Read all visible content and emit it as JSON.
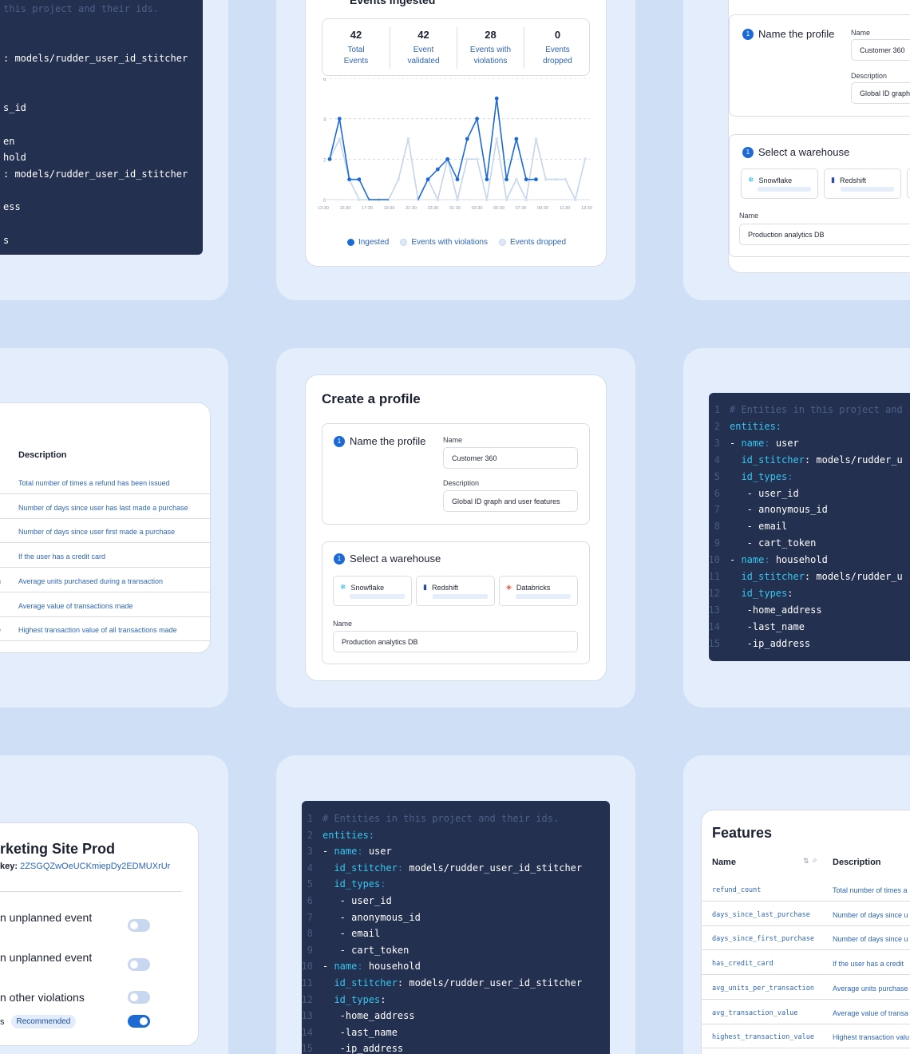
{
  "code_tile_top": {
    "lines": [
      {
        "parts": [
          {
            "t": "this project and their ids.",
            "c": "cm"
          }
        ]
      },
      {
        "parts": []
      },
      {
        "parts": []
      },
      {
        "parts": [
          {
            "t": ": models/rudder_user_id_stitcher",
            "c": "pl"
          }
        ]
      },
      {
        "parts": []
      },
      {
        "parts": []
      },
      {
        "parts": [
          {
            "t": "s_id",
            "c": "pl"
          }
        ]
      },
      {
        "parts": []
      },
      {
        "parts": [
          {
            "t": "en",
            "c": "pl"
          }
        ]
      },
      {
        "parts": [
          {
            "t": "hold",
            "c": "pl"
          }
        ]
      },
      {
        "parts": [
          {
            "t": ": models/rudder_user_id_stitcher",
            "c": "pl"
          }
        ]
      },
      {
        "parts": []
      },
      {
        "parts": [
          {
            "t": "ess",
            "c": "pl"
          }
        ]
      },
      {
        "parts": []
      },
      {
        "parts": [
          {
            "t": "s",
            "c": "pl"
          }
        ]
      }
    ]
  },
  "events_card": {
    "title": "Events ingested",
    "stats": [
      {
        "value": "42",
        "label": "Total\nEvents"
      },
      {
        "value": "42",
        "label": "Event\nvalidated"
      },
      {
        "value": "28",
        "label": "Events with\nviolations"
      },
      {
        "value": "0",
        "label": "Events\ndropped"
      }
    ],
    "legend": [
      "Ingested",
      "Events with violations",
      "Events dropped"
    ]
  },
  "chart_data": {
    "type": "line",
    "ylim": [
      0,
      6
    ],
    "y_ticks": [
      "0",
      "2",
      "4",
      "6"
    ],
    "x_ticks": [
      "13:30",
      "15:30",
      "17:30",
      "19:30",
      "21:30",
      "23:30",
      "01:30",
      "03:30",
      "05:30",
      "07:30",
      "09:30",
      "11:30",
      "13:30"
    ],
    "colors": {
      "Ingested": "#1c6ad4",
      "Events with violations": "#c4d5ec",
      "Events dropped": "#c4d5ec"
    },
    "series": [
      {
        "name": "Ingested",
        "segments": [
          [
            [
              1,
              2
            ],
            [
              2,
              4
            ],
            [
              3,
              1
            ],
            [
              4,
              1
            ],
            [
              5,
              0
            ],
            [
              6,
              0
            ],
            [
              7,
              0
            ]
          ],
          [
            [
              10,
              0
            ],
            [
              11,
              1
            ],
            [
              12,
              1.5
            ],
            [
              13,
              2
            ],
            [
              14,
              1
            ],
            [
              15,
              3
            ],
            [
              16,
              4
            ],
            [
              17,
              1
            ],
            [
              18,
              5
            ],
            [
              19,
              1
            ],
            [
              20,
              3
            ],
            [
              21,
              1
            ],
            [
              22,
              1
            ]
          ]
        ]
      },
      {
        "name": "Events with violations",
        "segments": [
          [
            [
              1,
              2
            ],
            [
              2,
              3
            ],
            [
              3,
              1
            ],
            [
              4,
              0
            ],
            [
              5,
              0
            ],
            [
              6,
              0
            ],
            [
              7,
              0
            ],
            [
              8,
              1
            ],
            [
              9,
              3
            ],
            [
              10,
              0
            ],
            [
              11,
              1
            ],
            [
              12,
              0
            ],
            [
              13,
              2
            ],
            [
              14,
              0
            ],
            [
              15,
              2
            ],
            [
              16,
              2
            ],
            [
              17,
              0
            ],
            [
              18,
              3
            ],
            [
              19,
              0
            ],
            [
              20,
              1
            ],
            [
              21,
              0
            ],
            [
              22,
              3
            ],
            [
              23,
              1
            ],
            [
              24,
              1
            ],
            [
              25,
              1
            ],
            [
              26,
              0
            ],
            [
              27,
              2
            ]
          ]
        ]
      }
    ]
  },
  "profile_right": {
    "step1": "Name the profile",
    "name_label": "Name",
    "name_value": "Customer 360",
    "desc_label": "Description",
    "desc_value": "Global ID graph",
    "step2": "Select a warehouse",
    "warehouses": [
      "Snowflake",
      "Redshift"
    ],
    "db_label": "Name",
    "db_value": "Production analytics DB"
  },
  "features_left": {
    "header": "Description",
    "rows": [
      {
        "n": "",
        "d": "Total number of times a refund has been issued"
      },
      {
        "n": "e",
        "d": "Number of days since user has last made a purchase"
      },
      {
        "n": "se",
        "d": "Number of days since user first made a purchase"
      },
      {
        "n": "",
        "d": "If the user has a credit card"
      },
      {
        "n": "on",
        "d": "Average units purchased during a transaction"
      },
      {
        "n": "",
        "d": "Average value of transactions made"
      },
      {
        "n": "ue",
        "d": "Highest transaction value of all transactions made"
      }
    ]
  },
  "create_profile": {
    "title": "Create a profile",
    "step1": "Name the profile",
    "name_label": "Name",
    "name_value": "Customer 360",
    "desc_label": "Description",
    "desc_value": "Global ID graph and user features",
    "step2": "Select a warehouse",
    "warehouses": [
      "Snowflake",
      "Redshift",
      "Databricks"
    ],
    "db_label": "Name",
    "db_value": "Production analytics DB"
  },
  "code_tile_right": {
    "lines": [
      {
        "no": "1",
        "parts": [
          {
            "t": "# Entities in this project and",
            "c": "cm"
          }
        ]
      },
      {
        "no": "2",
        "parts": [
          {
            "t": "entities:",
            "c": "ky"
          }
        ]
      },
      {
        "no": "3",
        "parts": [
          {
            "t": "- ",
            "c": "pl"
          },
          {
            "t": "name",
            "c": "ky"
          },
          {
            "t": ": ",
            "c": "kd"
          },
          {
            "t": "user",
            "c": "pl"
          }
        ]
      },
      {
        "no": "4",
        "parts": [
          {
            "t": "  id_stitcher",
            "c": "ky"
          },
          {
            "t": ": models/rudder_u",
            "c": "pl"
          }
        ]
      },
      {
        "no": "5",
        "parts": [
          {
            "t": "  id_types",
            "c": "ky"
          },
          {
            "t": ":",
            "c": "kd"
          }
        ]
      },
      {
        "no": "6",
        "parts": [
          {
            "t": "   - user_id",
            "c": "pl"
          }
        ]
      },
      {
        "no": "7",
        "parts": [
          {
            "t": "   - anonymous_id",
            "c": "pl"
          }
        ]
      },
      {
        "no": "8",
        "parts": [
          {
            "t": "   - email",
            "c": "pl"
          }
        ]
      },
      {
        "no": "9",
        "parts": [
          {
            "t": "   - cart_token",
            "c": "pl"
          }
        ]
      },
      {
        "no": "10",
        "parts": [
          {
            "t": "- ",
            "c": "pl"
          },
          {
            "t": "name",
            "c": "ky"
          },
          {
            "t": ": ",
            "c": "kd"
          },
          {
            "t": "household",
            "c": "pl"
          }
        ]
      },
      {
        "no": "11",
        "parts": [
          {
            "t": "  id_stitcher",
            "c": "ky"
          },
          {
            "t": ": models/rudder_u",
            "c": "pl"
          }
        ]
      },
      {
        "no": "12",
        "parts": [
          {
            "t": "  id_types",
            "c": "ky"
          },
          {
            "t": ":",
            "c": "pl"
          }
        ]
      },
      {
        "no": "13",
        "parts": [
          {
            "t": "   -home_address",
            "c": "pl"
          }
        ]
      },
      {
        "no": "14",
        "parts": [
          {
            "t": "   -last_name",
            "c": "pl"
          }
        ]
      },
      {
        "no": "15",
        "parts": [
          {
            "t": "   -ip_address",
            "c": "pl"
          }
        ]
      }
    ]
  },
  "source_card": {
    "title": "rketing Site Prod",
    "key_label": "key:",
    "key_value": "2ZSGQZwOeUCKmiepDy2EDMUXrUr",
    "options": [
      {
        "label": "n unplanned event",
        "on": false
      },
      {
        "label": "n unplanned event",
        "on": false
      },
      {
        "label": "n other violations",
        "on": false
      },
      {
        "label": "s",
        "badge": "Recommended",
        "on": true
      }
    ]
  },
  "code_tile_bottom": {
    "lines": [
      {
        "no": "1",
        "parts": [
          {
            "t": "# Entities in this project and their ids.",
            "c": "cm"
          }
        ]
      },
      {
        "no": "2",
        "parts": [
          {
            "t": "entities:",
            "c": "ky"
          }
        ]
      },
      {
        "no": "3",
        "parts": [
          {
            "t": "- ",
            "c": "pl"
          },
          {
            "t": "name",
            "c": "ky"
          },
          {
            "t": ": ",
            "c": "kd"
          },
          {
            "t": "user",
            "c": "pl"
          }
        ]
      },
      {
        "no": "4",
        "parts": [
          {
            "t": "  id_stitcher",
            "c": "ky"
          },
          {
            "t": ": ",
            "c": "kd"
          },
          {
            "t": "models/rudder_user_id_stitcher",
            "c": "pl"
          }
        ]
      },
      {
        "no": "5",
        "parts": [
          {
            "t": "  id_types",
            "c": "ky"
          },
          {
            "t": ":",
            "c": "kd"
          }
        ]
      },
      {
        "no": "6",
        "parts": [
          {
            "t": "   - user_id",
            "c": "pl"
          }
        ]
      },
      {
        "no": "7",
        "parts": [
          {
            "t": "   - anonymous_id",
            "c": "pl"
          }
        ]
      },
      {
        "no": "8",
        "parts": [
          {
            "t": "   - email",
            "c": "pl"
          }
        ]
      },
      {
        "no": "9",
        "parts": [
          {
            "t": "   - cart_token",
            "c": "pl"
          }
        ]
      },
      {
        "no": "10",
        "parts": [
          {
            "t": "- ",
            "c": "pl"
          },
          {
            "t": "name",
            "c": "ky"
          },
          {
            "t": ": ",
            "c": "kd"
          },
          {
            "t": "household",
            "c": "pl"
          }
        ]
      },
      {
        "no": "11",
        "parts": [
          {
            "t": "  id_stitcher",
            "c": "ky"
          },
          {
            "t": ": models/rudder_user_id_stitcher",
            "c": "pl"
          }
        ]
      },
      {
        "no": "12",
        "parts": [
          {
            "t": "  id_types",
            "c": "ky"
          },
          {
            "t": ":",
            "c": "pl"
          }
        ]
      },
      {
        "no": "13",
        "parts": [
          {
            "t": "   -home_address",
            "c": "pl"
          }
        ]
      },
      {
        "no": "14",
        "parts": [
          {
            "t": "   -last_name",
            "c": "pl"
          }
        ]
      },
      {
        "no": "15",
        "parts": [
          {
            "t": "   -ip_address",
            "c": "pl"
          }
        ]
      }
    ]
  },
  "features_right": {
    "title": "Features",
    "col_name": "Name",
    "col_desc": "Description",
    "rows": [
      {
        "n": "refund_count",
        "d": "Total number of times a"
      },
      {
        "n": "days_since_last_purchase",
        "d": "Number of days since u"
      },
      {
        "n": "days_since_first_purchase",
        "d": "Number of days since u"
      },
      {
        "n": "has_credit_card",
        "d": "If the user has a credit"
      },
      {
        "n": "avg_units_per_transaction",
        "d": "Average units purchase"
      },
      {
        "n": "avg_transaction_value",
        "d": "Average value of transa"
      },
      {
        "n": "highest_transaction_value",
        "d": "Highest transaction valu"
      }
    ]
  }
}
